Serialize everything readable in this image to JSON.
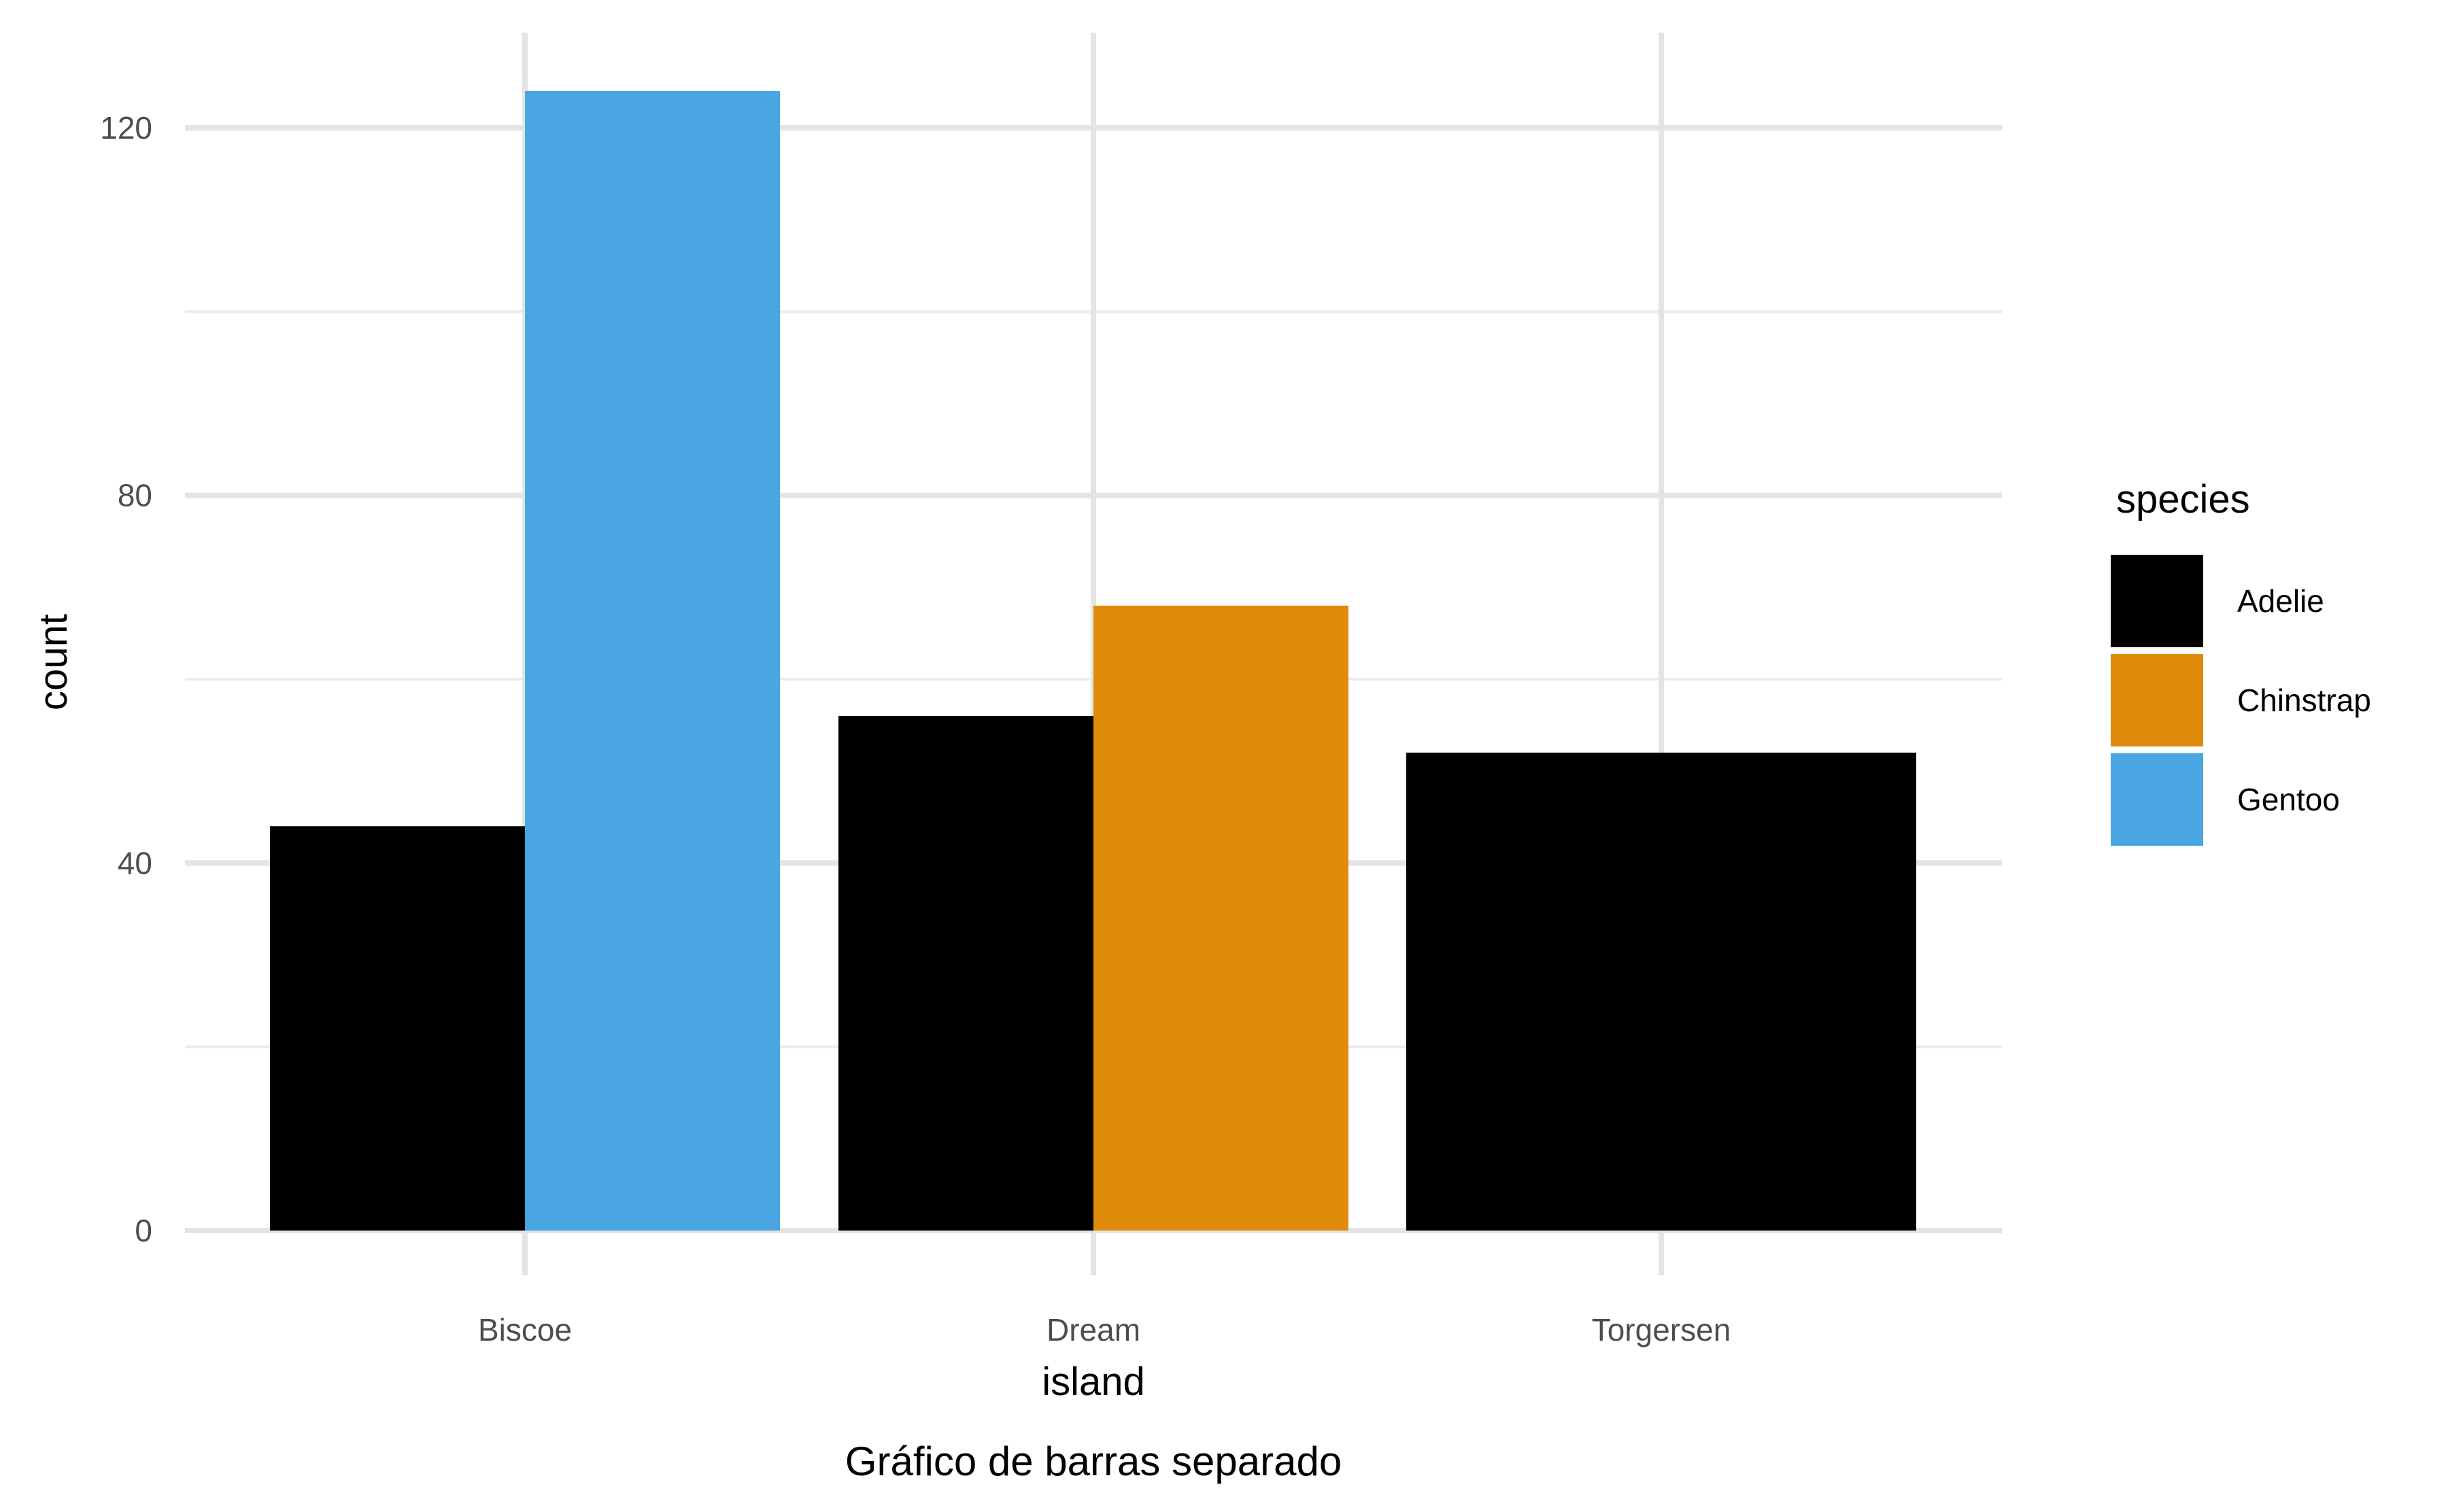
{
  "chart_data": {
    "type": "bar",
    "position": "dodge",
    "categories": [
      "Biscoe",
      "Dream",
      "Torgersen"
    ],
    "series": [
      {
        "name": "Adelie",
        "color": "#000000",
        "values": [
          44,
          56,
          52
        ]
      },
      {
        "name": "Chinstrap",
        "color": "#E08B0B",
        "values": [
          null,
          68,
          null
        ]
      },
      {
        "name": "Gentoo",
        "color": "#4AA5E3",
        "values": [
          124,
          null,
          null
        ]
      }
    ],
    "xlabel": "island",
    "ylabel": "count",
    "caption": "Gráfico de barras separado",
    "yticks": [
      0,
      40,
      80,
      120
    ],
    "ylim": [
      0,
      130
    ],
    "grid": true,
    "legend": {
      "title": "species",
      "placement": "right"
    }
  }
}
